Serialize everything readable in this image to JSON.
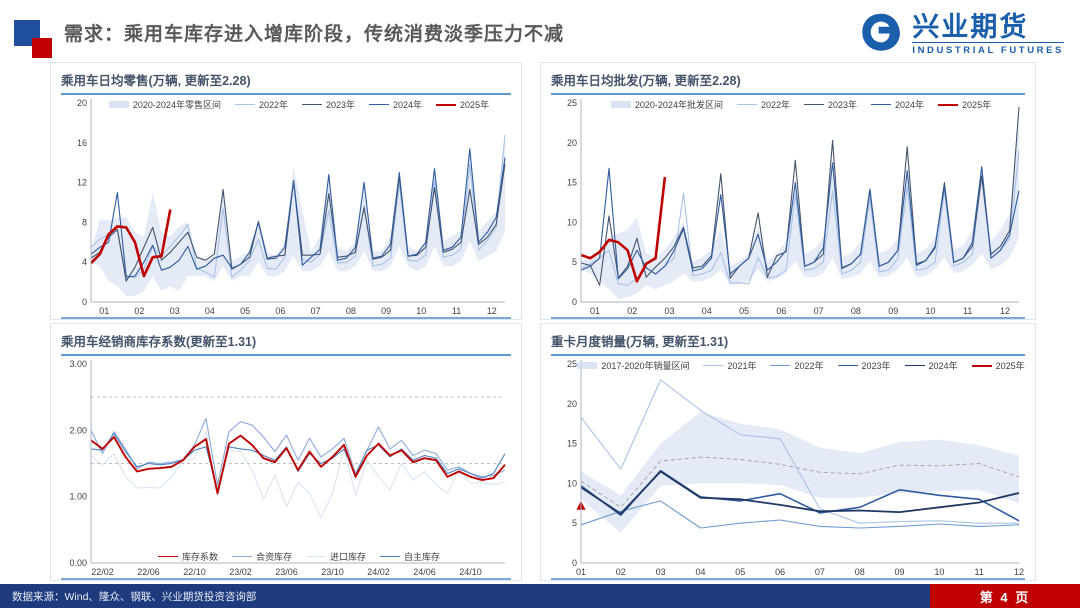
{
  "header": {
    "title": "需求：乘用车库存进入增库阶段，传统消费淡季压力不减"
  },
  "logo": {
    "name_cn": "兴业期货",
    "name_en": "INDUSTRIAL FUTURES"
  },
  "footer": {
    "source": "数据来源：Wind、隆众、钢联、兴业期货投资咨询部",
    "page": "第 4 页"
  },
  "colors": {
    "brand_blue": "#1b5eab",
    "footer_blue": "#1f3a7d",
    "accent_red": "#c00000",
    "square_blue": "#1f4e9c",
    "title_gray": "#595959",
    "rule_blue": "#5b9bd5"
  },
  "chart_data": [
    {
      "type": "line",
      "title": "乘用车日均零售(万辆, 更新至2.28)",
      "ylim": [
        0,
        20
      ],
      "ytick_vals": [
        0,
        4,
        8,
        12,
        16,
        20
      ],
      "ytick_labels": [
        "0",
        "4",
        "8",
        "12",
        "16",
        "20"
      ],
      "xticks": [
        "01",
        "02",
        "03",
        "04",
        "05",
        "06",
        "07",
        "08",
        "09",
        "10",
        "11",
        "12"
      ],
      "x_count": 48,
      "points_per_month": 4,
      "legend_pos": "top",
      "band": {
        "name": "2020-2024年零售区间",
        "color": "#cdd9ee",
        "high": [
          5.0,
          8.3,
          8.2,
          8.5,
          8.5,
          7.0,
          6.5,
          11.0,
          7.0,
          6.6,
          7.6,
          8.0,
          4.6,
          4.1,
          4.6,
          11.5,
          4.1,
          4.6,
          5.1,
          8.1,
          5.1,
          4.6,
          6.1,
          13.6,
          9.1,
          5.1,
          6.6,
          13.1,
          5.6,
          5.1,
          6.1,
          12.6,
          5.1,
          5.1,
          6.6,
          13.1,
          5.6,
          5.1,
          6.1,
          13.6,
          6.1,
          6.6,
          7.1,
          15.6,
          7.1,
          8.1,
          9.1,
          17.1
        ],
        "low": [
          4.0,
          3.6,
          2.1,
          1.6,
          0.6,
          0.6,
          1.1,
          2.6,
          1.1,
          1.6,
          1.1,
          2.6,
          2.6,
          2.6,
          2.1,
          3.6,
          2.1,
          2.6,
          2.6,
          4.1,
          2.6,
          2.6,
          3.1,
          4.6,
          3.1,
          3.1,
          3.6,
          5.1,
          3.1,
          3.1,
          3.6,
          5.1,
          3.1,
          3.1,
          3.6,
          5.6,
          3.6,
          3.1,
          3.6,
          5.6,
          3.6,
          3.6,
          4.1,
          6.1,
          4.1,
          4.6,
          5.1,
          7.1
        ]
      },
      "series": [
        {
          "name": "2022年",
          "color": "#a9c3e6",
          "width": 1.1,
          "values": [
            5.5,
            6.3,
            6.8,
            7.2,
            2.7,
            2.4,
            3.3,
            5.6,
            4.6,
            5.6,
            6.6,
            7.8,
            3.4,
            3.0,
            2.5,
            9.4,
            2.5,
            3.2,
            4.2,
            6.3,
            3.4,
            3.3,
            4.5,
            12.1,
            4.3,
            4.0,
            4.8,
            9.2,
            3.9,
            4.0,
            4.6,
            9.7,
            3.6,
            3.8,
            4.4,
            11.9,
            4.2,
            4.1,
            4.7,
            12.2,
            4.5,
            4.7,
            5.3,
            13.8,
            5.2,
            6.2,
            7.5,
            16.8
          ]
        },
        {
          "name": "2023年",
          "color": "#44546a",
          "width": 1.1,
          "values": [
            4.4,
            5.0,
            6.5,
            7.3,
            2.1,
            3.5,
            5.5,
            7.5,
            4.2,
            5.0,
            6.0,
            7.0,
            4.5,
            4.2,
            4.8,
            11.3,
            3.3,
            3.8,
            4.5,
            8.1,
            4.4,
            4.6,
            4.7,
            12.2,
            4.7,
            4.7,
            4.8,
            10.9,
            4.5,
            4.6,
            5.0,
            9.5,
            4.3,
            4.5,
            5.2,
            12.6,
            4.6,
            4.7,
            5.5,
            11.5,
            5.0,
            5.3,
            6.0,
            11.3,
            5.8,
            6.5,
            7.8,
            13.9
          ]
        },
        {
          "name": "2024年",
          "color": "#2f5b9f",
          "width": 1.1,
          "values": [
            4.8,
            5.5,
            6.0,
            11.0,
            2.5,
            2.6,
            4.0,
            5.7,
            3.2,
            3.5,
            4.2,
            5.6,
            3.3,
            3.6,
            4.4,
            4.7,
            3.4,
            3.8,
            5.0,
            8.0,
            4.3,
            4.4,
            5.5,
            12.2,
            3.7,
            4.5,
            5.3,
            12.8,
            4.2,
            4.4,
            5.5,
            12.0,
            4.4,
            4.6,
            5.8,
            13.0,
            4.6,
            4.8,
            6.0,
            13.4,
            5.2,
            5.5,
            6.5,
            15.4,
            6.0,
            7.0,
            8.5,
            14.5
          ]
        },
        {
          "name": "2025年",
          "color": "#c00000",
          "width": 2.6,
          "values": [
            3.9,
            4.8,
            6.8,
            7.6,
            7.5,
            6.0,
            2.6,
            4.5,
            4.6,
            9.3
          ]
        }
      ]
    },
    {
      "type": "line",
      "title": "乘用车日均批发(万辆, 更新至2.28)",
      "ylim": [
        0,
        25
      ],
      "ytick_vals": [
        0,
        5,
        10,
        15,
        20,
        25
      ],
      "ytick_labels": [
        "0",
        "5",
        "10",
        "15",
        "20",
        "25"
      ],
      "xticks": [
        "01",
        "02",
        "03",
        "04",
        "05",
        "06",
        "07",
        "08",
        "09",
        "10",
        "11",
        "12"
      ],
      "x_count": 48,
      "points_per_month": 4,
      "legend_pos": "top",
      "band": {
        "name": "2020-2024年批发区间",
        "color": "#cdd9ee",
        "high": [
          5.2,
          5.6,
          6.6,
          8.1,
          8.6,
          9.1,
          10.6,
          6.1,
          5.6,
          6.6,
          8.1,
          10.1,
          5.1,
          5.6,
          6.6,
          9.1,
          4.6,
          5.1,
          6.1,
          9.6,
          5.1,
          6.1,
          7.6,
          14.1,
          6.1,
          6.6,
          8.1,
          16.1,
          5.6,
          6.1,
          7.6,
          14.1,
          6.1,
          6.6,
          8.1,
          16.1,
          6.1,
          6.6,
          8.1,
          15.1,
          6.6,
          7.1,
          9.1,
          17.1,
          7.6,
          9.1,
          11.1,
          23.1
        ],
        "low": [
          4.1,
          3.6,
          2.6,
          1.6,
          0.4,
          0.6,
          1.1,
          2.1,
          1.6,
          2.1,
          2.6,
          3.6,
          2.6,
          2.6,
          3.1,
          4.1,
          2.1,
          2.3,
          2.6,
          4.1,
          2.6,
          2.9,
          3.6,
          5.1,
          3.1,
          3.1,
          3.6,
          5.6,
          2.9,
          3.1,
          3.6,
          5.1,
          3.1,
          3.3,
          4.1,
          5.6,
          3.1,
          3.3,
          4.1,
          5.6,
          3.6,
          3.9,
          4.6,
          6.1,
          4.1,
          4.6,
          5.6,
          8.1
        ]
      },
      "series": [
        {
          "name": "2022年",
          "color": "#a9c3e6",
          "width": 1.1,
          "values": [
            4.2,
            4.8,
            5.5,
            6.5,
            2.3,
            2.1,
            3.0,
            4.3,
            3.5,
            4.5,
            5.5,
            13.7,
            3.3,
            3.5,
            4.0,
            6.2,
            2.4,
            2.4,
            2.3,
            5.6,
            3.0,
            3.2,
            4.0,
            13.5,
            4.0,
            4.2,
            5.0,
            14.0,
            3.5,
            4.0,
            5.0,
            13.0,
            3.8,
            4.0,
            5.5,
            14.5,
            4.0,
            4.2,
            5.0,
            14.0,
            4.5,
            5.0,
            6.0,
            16.0,
            5.5,
            6.5,
            8.0,
            19.0
          ]
        },
        {
          "name": "2023年",
          "color": "#44546a",
          "width": 1.1,
          "values": [
            4.9,
            4.6,
            2.1,
            10.8,
            3.0,
            4.5,
            8.0,
            3.1,
            4.4,
            5.5,
            7.0,
            9.4,
            4.3,
            4.5,
            5.8,
            16.1,
            3.0,
            4.5,
            5.5,
            11.2,
            3.1,
            5.8,
            6.3,
            17.8,
            4.5,
            5.0,
            6.0,
            20.3,
            4.2,
            4.8,
            6.0,
            14.0,
            4.5,
            5.0,
            6.5,
            19.5,
            4.8,
            5.2,
            6.8,
            15.0,
            5.0,
            5.5,
            7.0,
            15.8,
            6.0,
            7.0,
            9.0,
            24.5
          ]
        },
        {
          "name": "2024年",
          "color": "#2f5b9f",
          "width": 1.1,
          "values": [
            4.0,
            4.5,
            5.5,
            16.8,
            2.9,
            4.2,
            6.5,
            4.3,
            3.5,
            4.5,
            6.5,
            9.2,
            3.9,
            4.2,
            5.5,
            13.5,
            3.5,
            4.5,
            5.5,
            8.5,
            4.0,
            5.0,
            6.5,
            15.0,
            4.5,
            5.0,
            6.8,
            17.5,
            4.3,
            4.8,
            6.0,
            14.2,
            4.5,
            5.0,
            6.5,
            16.5,
            4.6,
            5.2,
            7.0,
            14.5,
            5.0,
            5.5,
            7.5,
            17.0,
            5.5,
            6.5,
            8.5,
            14.0
          ]
        },
        {
          "name": "2025年",
          "color": "#c00000",
          "width": 2.6,
          "values": [
            5.9,
            5.5,
            6.3,
            7.8,
            7.5,
            6.5,
            2.6,
            4.8,
            5.5,
            15.7
          ]
        }
      ]
    },
    {
      "type": "line",
      "title": "乘用车经销商库存系数(更新至1.31)",
      "ylim": [
        0,
        3
      ],
      "ytick_vals": [
        0,
        1,
        2,
        3
      ],
      "ytick_labels": [
        "0.00",
        "1.00",
        "2.00",
        "3.00"
      ],
      "xticks": [
        "22/02",
        "22/06",
        "22/10",
        "23/02",
        "23/06",
        "23/10",
        "24/02",
        "24/06",
        "24/10"
      ],
      "x_count": 37,
      "xtick_start": 1,
      "xtick_step": 4,
      "legend_pos": "bottom",
      "ref_lines": [
        {
          "y": 2.5
        },
        {
          "y": 1.5
        }
      ],
      "series": [
        {
          "name": "进口库存",
          "color": "#dae3f3",
          "width": 1.1,
          "draw": 1,
          "values": [
            1.62,
            1.48,
            1.65,
            1.3,
            1.13,
            1.14,
            1.13,
            1.3,
            1.55,
            1.58,
            1.98,
            1.02,
            1.7,
            1.68,
            1.4,
            0.97,
            1.32,
            0.85,
            1.22,
            1.05,
            0.68,
            1.05,
            1.72,
            1.02,
            1.55,
            1.3,
            1.1,
            1.5,
            1.25,
            1.38,
            1.18,
            1.05,
            1.42,
            1.2,
            1.22,
            1.18,
            1.22
          ],
          "legend_order": 3
        },
        {
          "name": "合资库存",
          "color": "#8ea9db",
          "width": 1.1,
          "draw": 2,
          "values": [
            2.0,
            1.65,
            1.98,
            1.72,
            1.42,
            1.52,
            1.5,
            1.52,
            1.56,
            1.78,
            2.18,
            1.18,
            1.98,
            2.13,
            2.08,
            1.9,
            1.68,
            1.93,
            1.55,
            1.88,
            1.6,
            1.72,
            1.88,
            1.35,
            1.7,
            2.05,
            1.72,
            1.85,
            1.62,
            1.7,
            1.65,
            1.4,
            1.45,
            1.35,
            1.3,
            1.32,
            1.4
          ],
          "legend_order": 2
        },
        {
          "name": "自主库存",
          "color": "#4f81bd",
          "width": 1.1,
          "draw": 3,
          "values": [
            1.72,
            1.7,
            1.95,
            1.68,
            1.45,
            1.5,
            1.48,
            1.5,
            1.55,
            1.7,
            1.75,
            1.1,
            1.75,
            1.72,
            1.7,
            1.62,
            1.55,
            1.75,
            1.38,
            1.65,
            1.5,
            1.58,
            1.72,
            1.32,
            1.7,
            1.78,
            1.6,
            1.72,
            1.55,
            1.62,
            1.58,
            1.35,
            1.42,
            1.35,
            1.28,
            1.35,
            1.65
          ],
          "legend_order": 4
        },
        {
          "name": "库存系数",
          "color": "#c00000",
          "width": 1.9,
          "draw": 4,
          "values": [
            1.85,
            1.72,
            1.9,
            1.6,
            1.38,
            1.42,
            1.43,
            1.45,
            1.55,
            1.75,
            1.87,
            1.05,
            1.8,
            1.92,
            1.78,
            1.58,
            1.52,
            1.73,
            1.4,
            1.68,
            1.45,
            1.6,
            1.78,
            1.3,
            1.62,
            1.8,
            1.62,
            1.7,
            1.52,
            1.58,
            1.55,
            1.3,
            1.38,
            1.3,
            1.25,
            1.28,
            1.48
          ],
          "legend_order": 1
        }
      ]
    },
    {
      "type": "line",
      "title": "重卡月度销量(万辆, 更新至1.31)",
      "ylim": [
        0,
        25
      ],
      "ytick_vals": [
        0,
        5,
        10,
        15,
        20,
        25
      ],
      "ytick_labels": [
        "0",
        "5",
        "10",
        "15",
        "20",
        "25"
      ],
      "xticks": [
        "01",
        "02",
        "03",
        "04",
        "05",
        "06",
        "07",
        "08",
        "09",
        "10",
        "11",
        "12"
      ],
      "x_count": 12,
      "legend_pos": "top",
      "band": {
        "name": "2017-2020年销量区间",
        "color": "#cdd9ee",
        "high": [
          11.5,
          8.5,
          15.0,
          19.0,
          17.5,
          16.8,
          14.5,
          13.8,
          15.2,
          15.5,
          14.8,
          13.5
        ],
        "low": [
          8.0,
          3.8,
          9.7,
          10.0,
          10.0,
          9.8,
          8.2,
          8.2,
          8.8,
          9.0,
          9.2,
          7.5
        ]
      },
      "series": [
        {
          "name": "均值",
          "color": "#a6a6a6",
          "width": 1,
          "dash": "4 3",
          "legend": false,
          "values": [
            10.3,
            7.0,
            12.8,
            13.3,
            13.0,
            12.4,
            11.4,
            11.2,
            12.3,
            12.2,
            12.5,
            10.8
          ]
        },
        {
          "name": "2021年",
          "color": "#a9c3e6",
          "width": 1.1,
          "values": [
            18.3,
            11.8,
            23.0,
            19.2,
            16.1,
            15.6,
            6.8,
            5.0,
            5.2,
            5.3,
            5.0,
            5.0
          ]
        },
        {
          "name": "2022年",
          "color": "#6f9bd2",
          "width": 1.1,
          "values": [
            4.8,
            6.5,
            7.8,
            4.4,
            5.0,
            5.4,
            4.6,
            4.4,
            4.6,
            4.9,
            4.6,
            4.8
          ]
        },
        {
          "name": "2023年",
          "color": "#2f5b9f",
          "width": 1.6,
          "values": [
            9.7,
            6.0,
            11.6,
            8.3,
            7.8,
            8.7,
            6.3,
            7.0,
            9.2,
            8.5,
            8.0,
            5.3
          ]
        },
        {
          "name": "2024年",
          "color": "#1f3864",
          "width": 1.8,
          "values": [
            9.5,
            6.2,
            11.5,
            8.2,
            8.0,
            7.3,
            6.5,
            6.6,
            6.4,
            7.0,
            7.6,
            8.8
          ]
        },
        {
          "name": "2025年",
          "color": "#c00000",
          "width": 2.6,
          "marker": "triangle",
          "values": [
            7.2
          ]
        }
      ]
    }
  ]
}
